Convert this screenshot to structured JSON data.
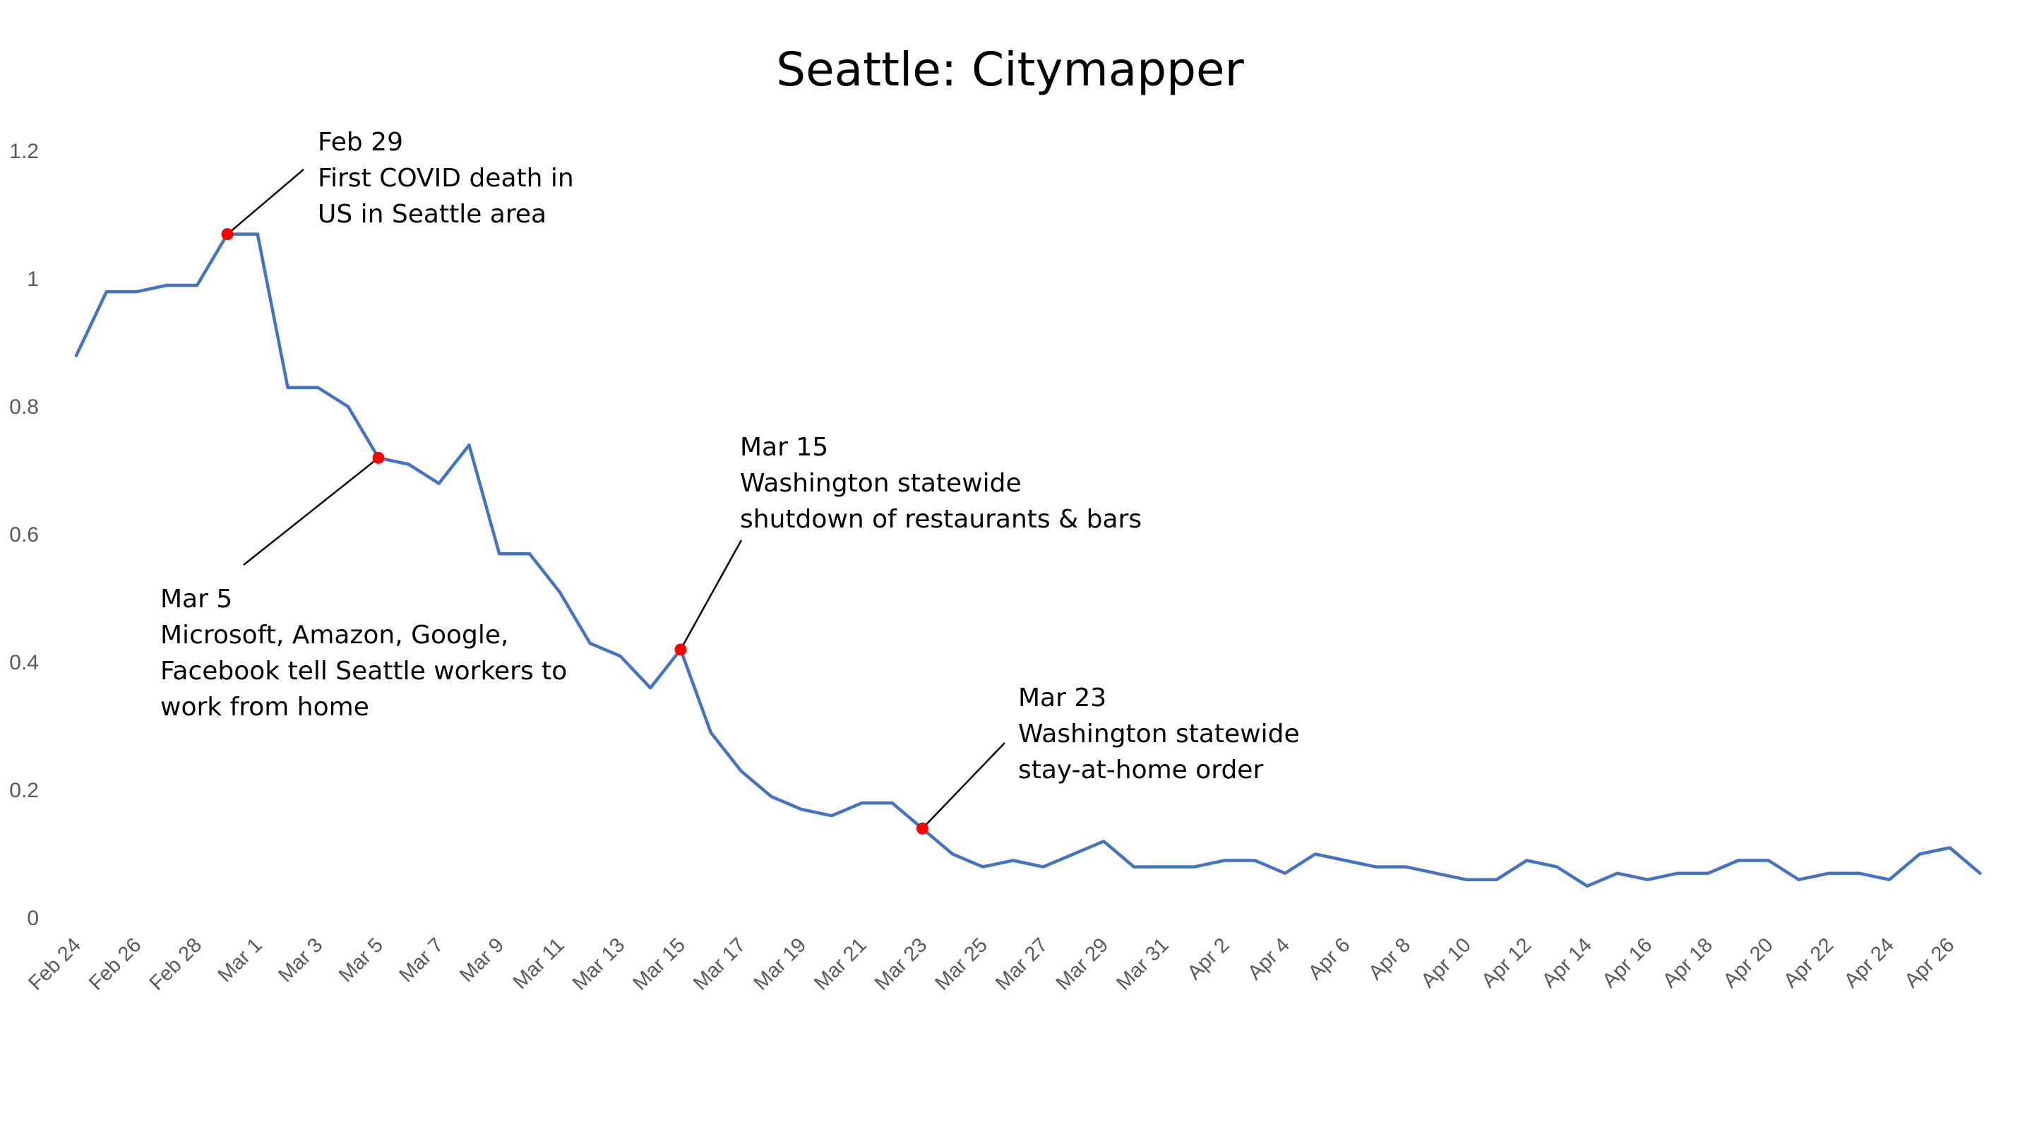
{
  "chart_data": {
    "type": "line",
    "title": "Seattle: Citymapper",
    "xlabel": "",
    "ylabel": "",
    "ylim": [
      0,
      1.2
    ],
    "yticks": [
      "0",
      "0.2",
      "0.4",
      "0.6",
      "0.8",
      "1",
      "1.2"
    ],
    "grid": false,
    "line_color": "#4472C4",
    "marker_color": "#FF0000",
    "x_tick_labels": [
      "Feb 24",
      "Feb 26",
      "Feb 28",
      "Mar 1",
      "Mar 3",
      "Mar 5",
      "Mar 7",
      "Mar 9",
      "Mar 11",
      "Mar 13",
      "Mar 15",
      "Mar 17",
      "Mar 19",
      "Mar 21",
      "Mar 23",
      "Mar 25",
      "Mar 27",
      "Mar 29",
      "Mar 31",
      "Apr 2",
      "Apr 4",
      "Apr 6",
      "Apr 8",
      "Apr 10",
      "Apr 12",
      "Apr 14",
      "Apr 16",
      "Apr 18",
      "Apr 20",
      "Apr 22",
      "Apr 24",
      "Apr 26"
    ],
    "series": [
      {
        "x": [
          "Feb 24",
          "Feb 25",
          "Feb 26",
          "Feb 27",
          "Feb 28",
          "Feb 29",
          "Mar 1",
          "Mar 2",
          "Mar 3",
          "Mar 4",
          "Mar 5",
          "Mar 6",
          "Mar 7",
          "Mar 8",
          "Mar 9",
          "Mar 10",
          "Mar 11",
          "Mar 12",
          "Mar 13",
          "Mar 14",
          "Mar 15",
          "Mar 16",
          "Mar 17",
          "Mar 18",
          "Mar 19",
          "Mar 20",
          "Mar 21",
          "Mar 22",
          "Mar 23",
          "Mar 24",
          "Mar 25",
          "Mar 26",
          "Mar 27",
          "Mar 28",
          "Mar 29",
          "Mar 30",
          "Mar 31",
          "Apr 1",
          "Apr 2",
          "Apr 3",
          "Apr 4",
          "Apr 5",
          "Apr 6",
          "Apr 7",
          "Apr 8",
          "Apr 9",
          "Apr 10",
          "Apr 11",
          "Apr 12",
          "Apr 13",
          "Apr 14",
          "Apr 15",
          "Apr 16",
          "Apr 17",
          "Apr 18",
          "Apr 19",
          "Apr 20",
          "Apr 21",
          "Apr 22",
          "Apr 23",
          "Apr 24",
          "Apr 25",
          "Apr 26",
          "Apr 27"
        ],
        "values": [
          0.88,
          0.98,
          0.98,
          0.99,
          0.99,
          1.07,
          1.07,
          0.83,
          0.83,
          0.8,
          0.72,
          0.71,
          0.68,
          0.74,
          0.57,
          0.57,
          0.51,
          0.43,
          0.41,
          0.36,
          0.42,
          0.29,
          0.23,
          0.19,
          0.17,
          0.16,
          0.18,
          0.18,
          0.14,
          0.1,
          0.08,
          0.09,
          0.08,
          0.1,
          0.12,
          0.08,
          0.08,
          0.08,
          0.09,
          0.09,
          0.07,
          0.1,
          0.09,
          0.08,
          0.08,
          0.07,
          0.06,
          0.06,
          0.09,
          0.08,
          0.05,
          0.07,
          0.06,
          0.07,
          0.07,
          0.09,
          0.09,
          0.06,
          0.07,
          0.07,
          0.06,
          0.1,
          0.11,
          0.07
        ]
      }
    ],
    "annotations": [
      {
        "date": "Feb 29",
        "value": 1.07,
        "lines": [
          "Feb 29",
          "First COVID death in",
          "US in Seattle area"
        ]
      },
      {
        "date": "Mar 5",
        "value": 0.72,
        "lines": [
          "Mar 5",
          "Microsoft, Amazon, Google,",
          "Facebook tell Seattle workers to",
          "work from home"
        ]
      },
      {
        "date": "Mar 15",
        "value": 0.42,
        "lines": [
          "Mar 15",
          "Washington statewide",
          "shutdown of restaurants & bars"
        ]
      },
      {
        "date": "Mar 23",
        "value": 0.14,
        "lines": [
          "Mar 23",
          "Washington statewide",
          "stay-at-home order"
        ]
      }
    ]
  }
}
